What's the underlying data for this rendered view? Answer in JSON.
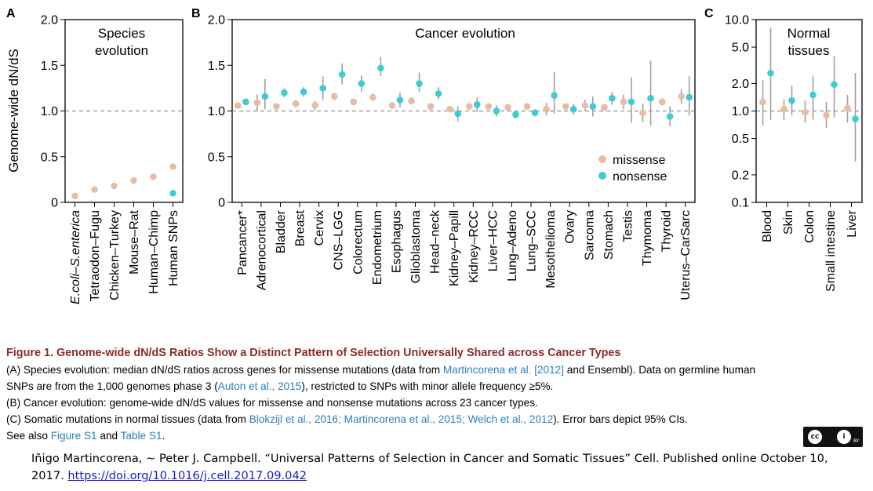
{
  "colors": {
    "missense": "#e8bca3",
    "nonsense": "#3fcbd3",
    "errorbar": "#a0a0a0",
    "caption_title": "#8b2a2a",
    "link": "#2a7fb8"
  },
  "chart_data": [
    {
      "panel": "A",
      "type": "scatter",
      "title": "Species evolution",
      "ylabel": "Genome-wide dN/dS",
      "ylim": [
        0,
        2.0
      ],
      "yticks": [
        "0",
        "0.5",
        "1.0",
        "1.5",
        "2.0"
      ],
      "yticks_values": [
        0,
        0.5,
        1.0,
        1.5,
        2.0
      ],
      "reference_line": 1.0,
      "categories": [
        "E.coli–S.enterica",
        "Tetraodon–Fugu",
        "Chicken–Turkey",
        "Mouse–Rat",
        "Human–Chimp",
        "Human SNPs"
      ],
      "series": [
        {
          "name": "missense",
          "values": [
            0.07,
            0.14,
            0.18,
            0.24,
            0.28,
            0.39
          ]
        },
        {
          "name": "nonsense",
          "values": [
            null,
            null,
            null,
            null,
            null,
            0.1
          ]
        }
      ]
    },
    {
      "panel": "B",
      "type": "scatter",
      "title": "Cancer evolution",
      "ylim": [
        0,
        2.0
      ],
      "yticks": [
        "0",
        "0.5",
        "1.0",
        "1.5",
        "2.0"
      ],
      "yticks_values": [
        0,
        0.5,
        1.0,
        1.5,
        2.0
      ],
      "reference_line": 1.0,
      "legend": {
        "position": "bottom-right",
        "entries": [
          "missense",
          "nonsense"
        ]
      },
      "categories": [
        "Pancancer*",
        "Adrenocortical",
        "Bladder",
        "Breast",
        "Cervix",
        "CNS–LGG",
        "Colorectum",
        "Endometrium",
        "Esophagus",
        "Glioblastoma",
        "Head–neck",
        "Kidney–Papill",
        "Kidney–RCC",
        "Liver–HCC",
        "Lung–Adeno",
        "Lung–SCC",
        "Mesothelioma",
        "Ovary",
        "Sarcoma",
        "Stomach",
        "Testis",
        "Thymoma",
        "Thyroid",
        "Uterus–CarSarc"
      ],
      "series": [
        {
          "name": "missense",
          "values": [
            1.06,
            1.09,
            1.05,
            1.08,
            1.06,
            1.16,
            1.1,
            1.15,
            1.06,
            1.11,
            1.05,
            1.02,
            1.05,
            1.05,
            1.04,
            1.05,
            1.02,
            1.05,
            1.06,
            1.04,
            1.1,
            0.98,
            1.1,
            1.16
          ],
          "ci_low": [
            1.05,
            1.0,
            1.02,
            1.05,
            1.01,
            1.12,
            1.07,
            1.11,
            1.02,
            1.07,
            1.03,
            0.99,
            1.03,
            1.03,
            1.02,
            1.03,
            0.95,
            1.02,
            1.0,
            1.01,
            1.02,
            0.88,
            1.06,
            1.08
          ],
          "ci_high": [
            1.07,
            1.18,
            1.08,
            1.11,
            1.11,
            1.2,
            1.13,
            1.19,
            1.1,
            1.15,
            1.07,
            1.05,
            1.07,
            1.07,
            1.06,
            1.07,
            1.09,
            1.08,
            1.12,
            1.07,
            1.18,
            1.08,
            1.14,
            1.24
          ]
        },
        {
          "name": "nonsense",
          "values": [
            1.1,
            1.16,
            1.2,
            1.21,
            1.25,
            1.4,
            1.3,
            1.47,
            1.12,
            1.3,
            1.19,
            0.97,
            1.07,
            1.0,
            0.96,
            0.98,
            1.17,
            1.02,
            1.05,
            1.14,
            1.1,
            1.14,
            0.94,
            1.15
          ],
          "ci_low": [
            1.08,
            1.02,
            1.15,
            1.16,
            1.12,
            1.29,
            1.21,
            1.38,
            1.04,
            1.21,
            1.13,
            0.89,
            0.99,
            0.94,
            0.92,
            0.94,
            0.97,
            0.96,
            0.94,
            1.07,
            0.87,
            0.84,
            0.83,
            0.95
          ],
          "ci_high": [
            1.12,
            1.35,
            1.25,
            1.26,
            1.38,
            1.52,
            1.39,
            1.59,
            1.2,
            1.42,
            1.26,
            1.05,
            1.15,
            1.06,
            1.0,
            1.02,
            1.43,
            1.08,
            1.16,
            1.21,
            1.37,
            1.55,
            1.05,
            1.38
          ]
        }
      ]
    },
    {
      "panel": "C",
      "type": "scatter",
      "title": "Normal tissues",
      "yscale": "log",
      "ylim": [
        0.1,
        10.0
      ],
      "yticks": [
        "0.1",
        "0.2",
        "0.5",
        "1.0",
        "2.0",
        "5.0",
        "10.0"
      ],
      "yticks_values": [
        0.1,
        0.2,
        0.5,
        1.0,
        2.0,
        5.0,
        10.0
      ],
      "reference_line": 1.0,
      "categories": [
        "Blood",
        "Skin",
        "Colon",
        "Small intestine",
        "Liver"
      ],
      "series": [
        {
          "name": "missense",
          "values": [
            1.25,
            1.05,
            0.97,
            0.9,
            1.07
          ],
          "ci_low": [
            0.7,
            0.8,
            0.75,
            0.65,
            0.75
          ],
          "ci_high": [
            2.2,
            1.35,
            1.3,
            1.25,
            1.5
          ]
        },
        {
          "name": "nonsense",
          "values": [
            2.6,
            1.3,
            1.5,
            1.95,
            0.82
          ],
          "ci_low": [
            0.8,
            0.9,
            0.8,
            0.85,
            0.28
          ],
          "ci_high": [
            8.2,
            1.9,
            2.4,
            4.0,
            2.6
          ]
        }
      ]
    }
  ],
  "panels": {
    "A": "A",
    "B": "B",
    "C": "C",
    "c_title_line1": "Normal",
    "c_title_line2": "tissues",
    "a_title_line1": "Species",
    "a_title_line2": "evolution"
  },
  "caption": {
    "title": "Figure 1.  Genome-wide dN/dS Ratios Show a Distinct Pattern of Selection Universally Shared across Cancer Types",
    "a1_pre": "(A) Species evolution: median dN/dS ratios across genes for missense mutations (data from ",
    "a1_link": "Martincorena et al. [2012]",
    "a1_post": " and Ensembl). Data on germline human",
    "a2_pre": "SNPs are from the 1,000 genomes phase 3 (",
    "a2_link": "Auton et al., 2015",
    "a2_post": "), restricted to SNPs with minor allele frequency ≥5%.",
    "b": "(B) Cancer evolution: genome-wide dN/dS values for missense and nonsense mutations across 23 cancer types.",
    "c_pre": "(C) Somatic mutations in normal tissues (data from ",
    "c_link": "Blokzijl et al., 2016; Martincorena et al., 2015; Welch et al., 2012",
    "c_post": "). Error bars depict 95% CIs.",
    "see_pre": "See also ",
    "see_link1": "Figure S1",
    "see_mid": " and ",
    "see_link2": "Table S1",
    "see_post": "."
  },
  "credit": {
    "text": "Iñigo Martincorena, ~ Peter J. Campbell. “Universal Patterns of Selection in Cancer and Somatic Tissues”  Cell. Published online October 10, 2017.",
    "doi": "https://doi.org/10.1016/j.cell.2017.09.042"
  },
  "license": {
    "cc": "cc",
    "by": "i",
    "by_label": "BY"
  }
}
